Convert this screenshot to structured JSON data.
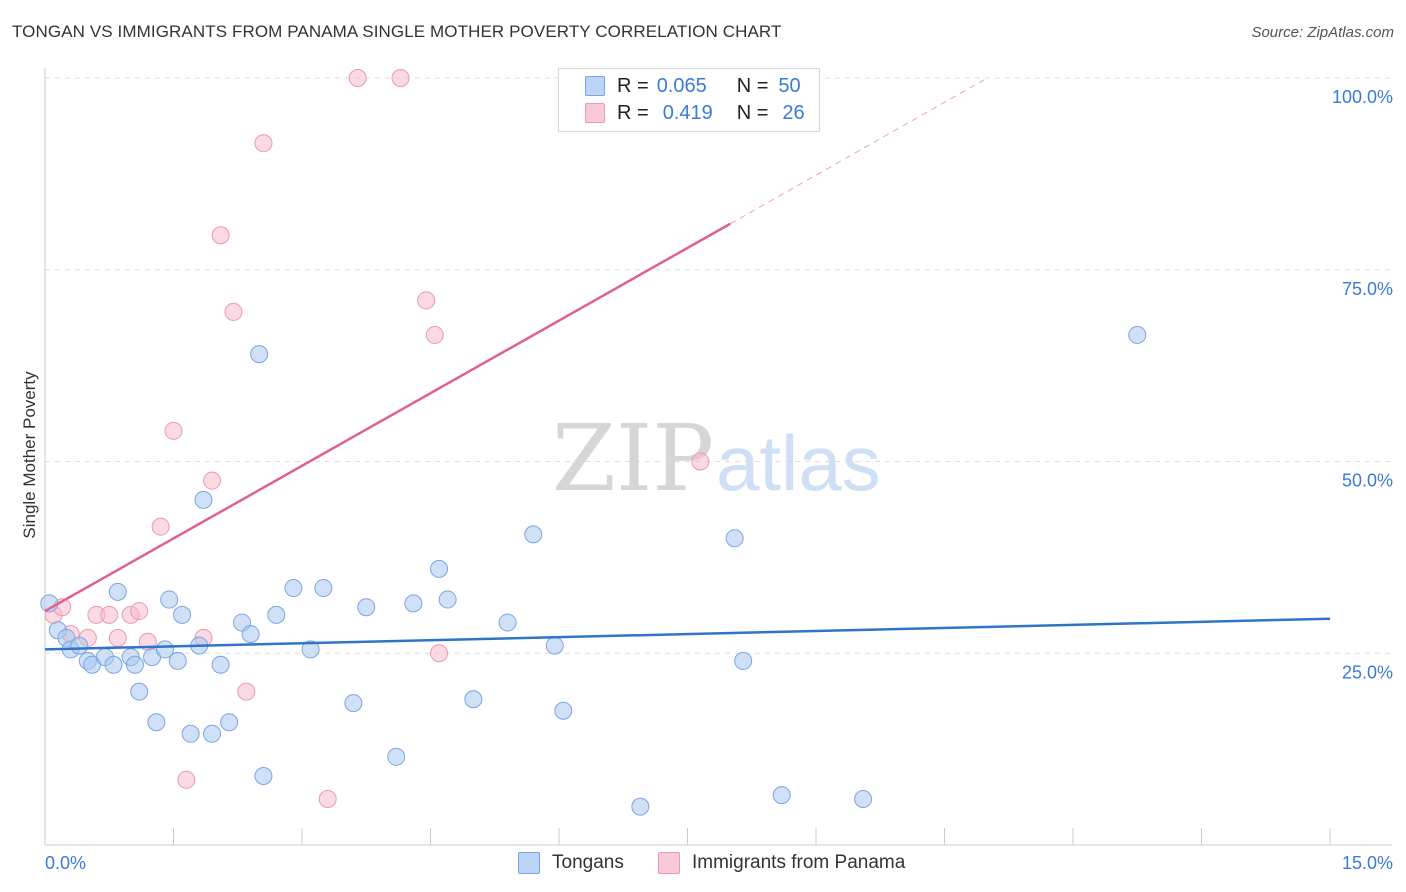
{
  "title": "TONGAN VS IMMIGRANTS FROM PANAMA SINGLE MOTHER POVERTY CORRELATION CHART",
  "source": "Source: ZipAtlas.com",
  "legend": {
    "rows": [
      {
        "r_label": "R =",
        "r_value": "0.065",
        "n_label": "N =",
        "n_value": "50"
      },
      {
        "r_label": "R =",
        "r_value": "0.419",
        "n_label": "N =",
        "n_value": "26"
      }
    ]
  },
  "bottom_legend": [
    "Tongans",
    "Immigrants from Panama"
  ],
  "watermark": {
    "part1": "ZIP",
    "part2": "atlas"
  },
  "colors": {
    "blue_fill": "#a9c8f0",
    "blue_stroke": "#7aa6e0",
    "blue_line": "#2e74c9",
    "pink_fill": "#f7bccd",
    "pink_stroke": "#eb98b2",
    "pink_line": "#e0628a",
    "axis_text": "#3a7bd5",
    "grid": "#dedede"
  },
  "chart_data": {
    "type": "scatter",
    "title": "TONGAN VS IMMIGRANTS FROM PANAMA SINGLE MOTHER POVERTY CORRELATION CHART",
    "xlabel": "",
    "ylabel": "Single Mother Poverty",
    "xlim": [
      0,
      15
    ],
    "ylim": [
      0,
      100
    ],
    "x_tick_labels": [
      "0.0%",
      "15.0%"
    ],
    "y_tick_labels": [
      "100.0%",
      "75.0%",
      "50.0%",
      "25.0%"
    ],
    "y_ticks": [
      100,
      75,
      50,
      25
    ],
    "series": [
      {
        "name": "Tongans",
        "points": [
          [
            0.05,
            31.5
          ],
          [
            0.15,
            28.0
          ],
          [
            0.25,
            27.0
          ],
          [
            0.3,
            25.5
          ],
          [
            0.4,
            26.0
          ],
          [
            0.5,
            24.0
          ],
          [
            0.55,
            23.5
          ],
          [
            0.7,
            24.5
          ],
          [
            0.8,
            23.5
          ],
          [
            0.85,
            33.0
          ],
          [
            1.0,
            24.5
          ],
          [
            1.05,
            23.5
          ],
          [
            1.1,
            20.0
          ],
          [
            1.25,
            24.5
          ],
          [
            1.3,
            16.0
          ],
          [
            1.4,
            25.5
          ],
          [
            1.45,
            32.0
          ],
          [
            1.55,
            24.0
          ],
          [
            1.6,
            30.0
          ],
          [
            1.7,
            14.5
          ],
          [
            1.8,
            26.0
          ],
          [
            1.85,
            45.0
          ],
          [
            1.95,
            14.5
          ],
          [
            2.05,
            23.5
          ],
          [
            2.15,
            16.0
          ],
          [
            2.3,
            29.0
          ],
          [
            2.4,
            27.5
          ],
          [
            2.5,
            64.0
          ],
          [
            2.55,
            9.0
          ],
          [
            2.7,
            30.0
          ],
          [
            2.9,
            33.5
          ],
          [
            3.1,
            25.5
          ],
          [
            3.25,
            33.5
          ],
          [
            3.6,
            18.5
          ],
          [
            3.75,
            31.0
          ],
          [
            4.1,
            11.5
          ],
          [
            4.3,
            31.5
          ],
          [
            4.6,
            36.0
          ],
          [
            4.7,
            32.0
          ],
          [
            5.0,
            19.0
          ],
          [
            5.4,
            29.0
          ],
          [
            5.7,
            40.5
          ],
          [
            5.95,
            26.0
          ],
          [
            6.05,
            17.5
          ],
          [
            6.95,
            5.0
          ],
          [
            8.05,
            40.0
          ],
          [
            8.15,
            24.0
          ],
          [
            8.6,
            6.5
          ],
          [
            9.55,
            6.0
          ],
          [
            12.75,
            66.5
          ]
        ],
        "trend": [
          [
            0,
            25.5
          ],
          [
            15,
            29.5
          ]
        ]
      },
      {
        "name": "Immigrants from Panama",
        "points": [
          [
            0.1,
            30.0
          ],
          [
            0.2,
            31.0
          ],
          [
            0.3,
            27.5
          ],
          [
            0.5,
            27.0
          ],
          [
            0.6,
            30.0
          ],
          [
            0.75,
            30.0
          ],
          [
            0.85,
            27.0
          ],
          [
            1.0,
            30.0
          ],
          [
            1.1,
            30.5
          ],
          [
            1.2,
            26.5
          ],
          [
            1.35,
            41.5
          ],
          [
            1.5,
            54.0
          ],
          [
            1.65,
            8.5
          ],
          [
            1.85,
            27.0
          ],
          [
            1.95,
            47.5
          ],
          [
            2.05,
            79.5
          ],
          [
            2.2,
            69.5
          ],
          [
            2.35,
            20.0
          ],
          [
            2.55,
            91.5
          ],
          [
            3.3,
            6.0
          ],
          [
            3.65,
            100.0
          ],
          [
            4.15,
            100.0
          ],
          [
            4.45,
            71.0
          ],
          [
            4.55,
            66.5
          ],
          [
            4.6,
            25.0
          ],
          [
            7.65,
            50.0
          ]
        ],
        "trend": [
          [
            0,
            30.5
          ],
          [
            8.0,
            81.0
          ]
        ],
        "trend_dashed_to": [
          11.0,
          100.0
        ]
      }
    ]
  }
}
